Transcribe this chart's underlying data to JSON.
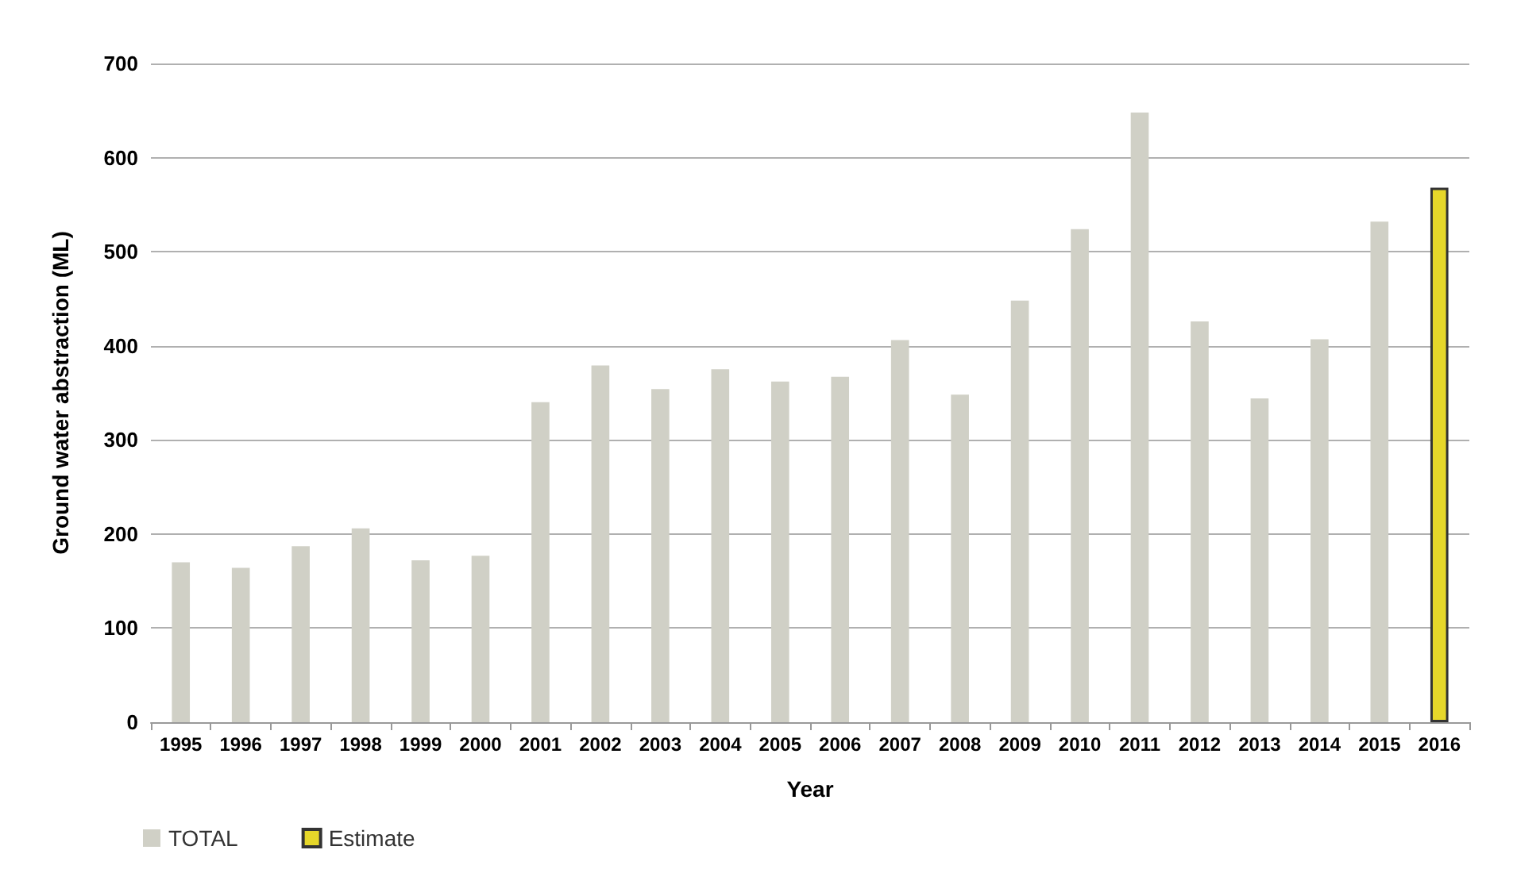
{
  "chart_data": {
    "type": "bar",
    "xlabel": "Year",
    "ylabel": "Ground water abstraction (ML)",
    "categories": [
      "1995",
      "1996",
      "1997",
      "1998",
      "1999",
      "2000",
      "2001",
      "2002",
      "2003",
      "2004",
      "2005",
      "2006",
      "2007",
      "2008",
      "2009",
      "2010",
      "2011",
      "2012",
      "2013",
      "2014",
      "2015",
      "2016"
    ],
    "series": [
      {
        "name": "TOTAL",
        "color": "#d0d0c6",
        "values": [
          170,
          164,
          187,
          206,
          172,
          177,
          340,
          379,
          354,
          375,
          362,
          367,
          406,
          348,
          448,
          524,
          648,
          426,
          344,
          407,
          532,
          null
        ]
      },
      {
        "name": "Estimate",
        "color": "#e6d72a",
        "values": [
          null,
          null,
          null,
          null,
          null,
          null,
          null,
          null,
          null,
          null,
          null,
          null,
          null,
          null,
          null,
          null,
          null,
          null,
          null,
          null,
          null,
          568
        ]
      }
    ],
    "stacked": true,
    "ylim": [
      0,
      700
    ],
    "yticks": [
      0,
      100,
      200,
      300,
      400,
      500,
      600,
      700
    ],
    "grid": "y",
    "legend": "bottom left"
  }
}
